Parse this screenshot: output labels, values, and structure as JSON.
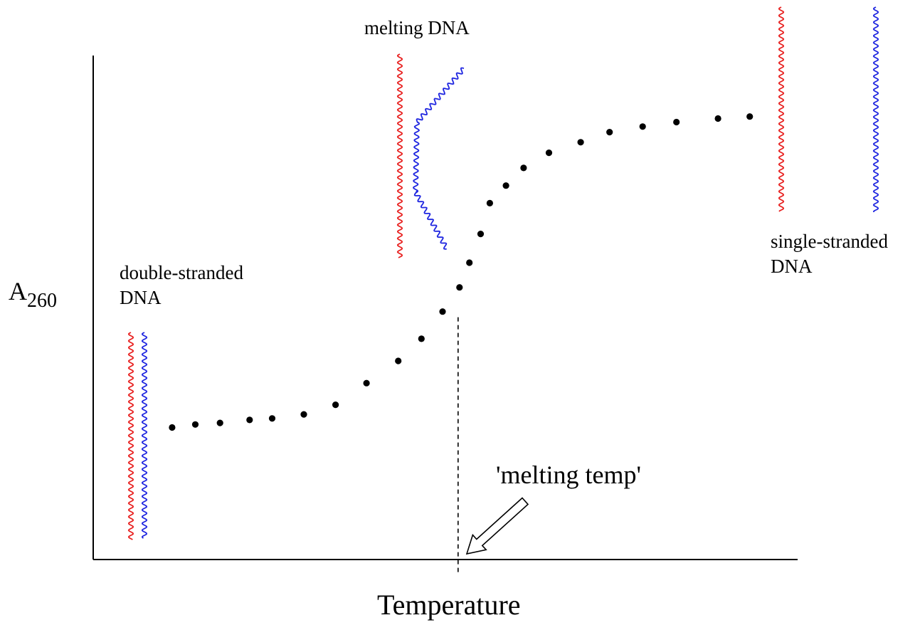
{
  "chart_data": {
    "type": "scatter",
    "title": "",
    "xlabel": "Temperature",
    "ylabel_base": "A",
    "ylabel_subscript": "260",
    "x_ticks": false,
    "y_ticks": false,
    "grid": false,
    "legend": "none",
    "xlim": [
      0,
      100
    ],
    "ylim": [
      0,
      100
    ],
    "points": [
      {
        "x": 11.2,
        "y": 26.2
      },
      {
        "x": 14.5,
        "y": 26.8
      },
      {
        "x": 18.0,
        "y": 27.1
      },
      {
        "x": 22.2,
        "y": 27.7
      },
      {
        "x": 25.4,
        "y": 28.0
      },
      {
        "x": 29.9,
        "y": 28.8
      },
      {
        "x": 34.4,
        "y": 30.7
      },
      {
        "x": 38.8,
        "y": 35.0
      },
      {
        "x": 43.3,
        "y": 39.4
      },
      {
        "x": 46.6,
        "y": 43.8
      },
      {
        "x": 49.6,
        "y": 49.2
      },
      {
        "x": 52.0,
        "y": 54.0
      },
      {
        "x": 53.4,
        "y": 58.9
      },
      {
        "x": 55.0,
        "y": 64.6
      },
      {
        "x": 56.3,
        "y": 70.7
      },
      {
        "x": 58.6,
        "y": 74.2
      },
      {
        "x": 61.1,
        "y": 77.7
      },
      {
        "x": 64.7,
        "y": 80.7
      },
      {
        "x": 69.2,
        "y": 82.8
      },
      {
        "x": 73.3,
        "y": 84.8
      },
      {
        "x": 78.0,
        "y": 85.9
      },
      {
        "x": 82.8,
        "y": 86.8
      },
      {
        "x": 88.7,
        "y": 87.5
      },
      {
        "x": 93.2,
        "y": 87.9
      }
    ],
    "melting_point": {
      "x": 51.8,
      "y": 49.2
    },
    "annotations": {
      "double_stranded": [
        "double-stranded",
        "DNA"
      ],
      "single_stranded": [
        "single-stranded",
        "DNA"
      ],
      "melting": "melting DNA",
      "melting_temp": "'melting temp'"
    },
    "colors": {
      "strand_1": "#e8201f",
      "strand_2": "#1f26e0",
      "axis": "#000000",
      "points": "#000000",
      "arrow_fill": "#ffffff"
    }
  }
}
